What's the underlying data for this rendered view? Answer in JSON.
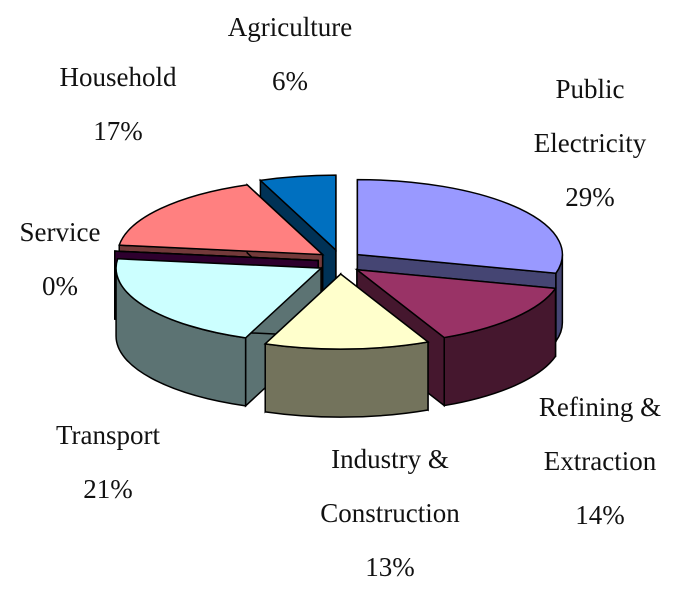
{
  "chart_data": {
    "type": "pie3d",
    "categories": [
      "Public Electricity",
      "Refining & Extraction",
      "Industry & Construction",
      "Transport",
      "Service",
      "Household",
      "Agriculture"
    ],
    "values": [
      29,
      14,
      13,
      21,
      0,
      17,
      6
    ],
    "value_labels": [
      "29%",
      "14%",
      "13%",
      "21%",
      "0%",
      "17%",
      "6%"
    ],
    "colors": [
      "#9999ff",
      "#993366",
      "#ffffcc",
      "#ccffff",
      "#660066",
      "#ff8080",
      "#0070c0"
    ],
    "exploded": true
  }
}
